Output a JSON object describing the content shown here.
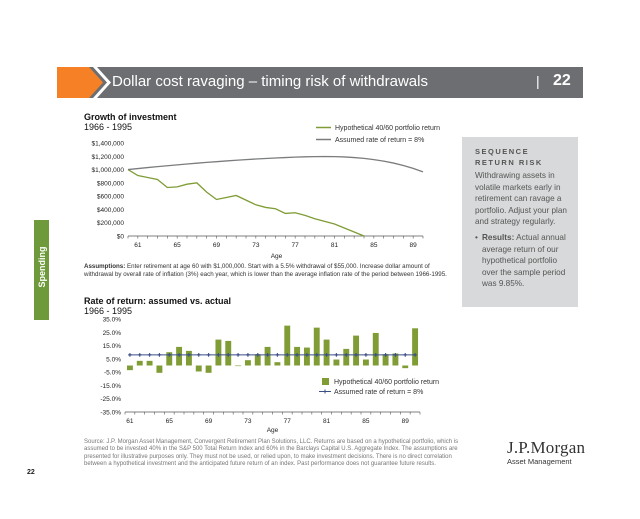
{
  "header": {
    "title": "Dollar cost ravaging – timing risk of withdrawals",
    "separator": "|",
    "page_number": "22"
  },
  "side_tab": {
    "label": "Spending"
  },
  "colors": {
    "header_gray": "#6d6e71",
    "orange": "#f58025",
    "green": "#6e9a3b",
    "line_green": "#7f9c35",
    "line_gray": "#7b7c7e",
    "marker_blue": "#3b4f86"
  },
  "sidebar": {
    "title_line1": "SEQUENCE",
    "title_line2": "RETURN RISK",
    "text": "Withdrawing assets in volatile markets early in retirement can ravage a portfolio. Adjust your plan and strategy regularly.",
    "bullet_label": "Results:",
    "bullet_text": "Actual annual average return of our hypothetical portfolio over the sample period was 9.85%."
  },
  "assumptions": {
    "label": "Assumptions:",
    "text": "Enter retirement at age 60 with $1,000,000. Start with a 5.5% withdrawal of $55,000. Increase dollar amount of withdrawal by overall rate of inflation (3%) each year, which is lower than the average inflation rate of the period between 1966-1995."
  },
  "source": "Source: J.P. Morgan Asset Management, Convergent Retirement Plan Solutions, LLC. Returns are based on a hypothetical portfolio, which is assumed to be invested 40% in the S&P 500 Total Return Index and 60% in the Barclays Capital U.S. Aggregate Index. The assumptions are presented for illustrative purposes only. They must not be used, or relied upon, to make investment decisions. There is no direct correlation between a hypothetical investment and the anticipated future return of an index. Past performance does not guarantee future results.",
  "footer": {
    "page_number": "22",
    "logo_main": "J.P.Morgan",
    "logo_sub": "Asset Management"
  },
  "chart_data": [
    {
      "type": "line",
      "title": "Growth of investment",
      "subtitle": "1966 - 1995",
      "xlabel": "Age",
      "ylabel": "",
      "x": [
        60,
        61,
        62,
        63,
        64,
        65,
        66,
        67,
        68,
        69,
        70,
        71,
        72,
        73,
        74,
        75,
        76,
        77,
        78,
        79,
        80,
        81,
        82,
        83,
        84,
        85,
        86,
        87,
        88,
        89,
        90
      ],
      "xlim": [
        60,
        90
      ],
      "ylim": [
        0,
        1400000
      ],
      "x_tick_labels": [
        "61",
        "65",
        "69",
        "73",
        "77",
        "81",
        "85",
        "89"
      ],
      "y_tick_labels": [
        "$0",
        "$200,000",
        "$400,000",
        "$600,000",
        "$800,000",
        "$1,000,000",
        "$1,200,000",
        "$1,400,000"
      ],
      "y_ticks": [
        0,
        200000,
        400000,
        600000,
        800000,
        1000000,
        1200000,
        1400000
      ],
      "x_ticks": [
        61,
        65,
        69,
        73,
        77,
        81,
        85,
        89
      ],
      "legend": "top-right",
      "series": [
        {
          "name": "Hypothetical 40/60 portfolio return",
          "color": "#7f9c35",
          "x": [
            60,
            61,
            62,
            63,
            64,
            65,
            66,
            67,
            68,
            69,
            70,
            71,
            72,
            73,
            74,
            75,
            76,
            77,
            78,
            79,
            80,
            81,
            82,
            83,
            84
          ],
          "values": [
            1000000,
            910000,
            880000,
            850000,
            730000,
            740000,
            780000,
            800000,
            660000,
            550000,
            580000,
            610000,
            540000,
            470000,
            430000,
            410000,
            340000,
            350000,
            310000,
            260000,
            220000,
            180000,
            120000,
            60000,
            0
          ]
        },
        {
          "name": "Assumed rate of return = 8%",
          "color": "#7b7c7e",
          "x": [
            60,
            61,
            62,
            63,
            64,
            65,
            66,
            67,
            68,
            69,
            70,
            71,
            72,
            73,
            74,
            75,
            76,
            77,
            78,
            79,
            80,
            81,
            82,
            83,
            84,
            85,
            86,
            87,
            88,
            89,
            90
          ],
          "values": [
            1000000,
            1015000,
            1030000,
            1044000,
            1058000,
            1071000,
            1084000,
            1096000,
            1108000,
            1119000,
            1130000,
            1140000,
            1150000,
            1159000,
            1167000,
            1174000,
            1181000,
            1187000,
            1192000,
            1195000,
            1197000,
            1195000,
            1190000,
            1181000,
            1168000,
            1150000,
            1127000,
            1098000,
            1062000,
            1018000,
            965000
          ]
        }
      ]
    },
    {
      "type": "bar",
      "title": "Rate of return: assumed vs. actual",
      "subtitle": "1966 - 1995",
      "xlabel": "Age",
      "ylabel": "",
      "x": [
        61,
        62,
        63,
        64,
        65,
        66,
        67,
        68,
        69,
        70,
        71,
        72,
        73,
        74,
        75,
        76,
        77,
        78,
        79,
        80,
        81,
        82,
        83,
        84,
        85,
        86,
        87,
        88,
        89,
        90
      ],
      "ylim": [
        -35,
        35
      ],
      "y_ticks": [
        -35,
        -25,
        -15,
        -5,
        5,
        15,
        25,
        35
      ],
      "y_tick_labels": [
        "-35.0%",
        "-25.0%",
        "-15.0%",
        "-5.0%",
        "5.0%",
        "15.0%",
        "25.0%",
        "35.0%"
      ],
      "x_ticks": [
        61,
        65,
        69,
        73,
        77,
        81,
        85,
        89
      ],
      "x_tick_labels": [
        "61",
        "65",
        "69",
        "73",
        "77",
        "81",
        "85",
        "89"
      ],
      "legend": "bottom-right",
      "series": [
        {
          "name": "Hypothetical 40/60 portfolio return",
          "color": "#7f9c35",
          "values": [
            -3.5,
            3.5,
            3.5,
            -5.5,
            10,
            14,
            11,
            -4.5,
            -5.5,
            19.5,
            18.5,
            0,
            4,
            8.5,
            14,
            2.5,
            30,
            14,
            13.5,
            28.5,
            19.5,
            4.5,
            12.5,
            22.5,
            4.5,
            24.5,
            8.5,
            9,
            -2,
            28
          ]
        },
        {
          "name": "Assumed rate of return = 8%",
          "color": "#3b4f86",
          "values": [
            8,
            8,
            8,
            8,
            8,
            8,
            8,
            8,
            8,
            8,
            8,
            8,
            8,
            8,
            8,
            8,
            8,
            8,
            8,
            8,
            8,
            8,
            8,
            8,
            8,
            8,
            8,
            8,
            8,
            8
          ]
        }
      ]
    }
  ]
}
